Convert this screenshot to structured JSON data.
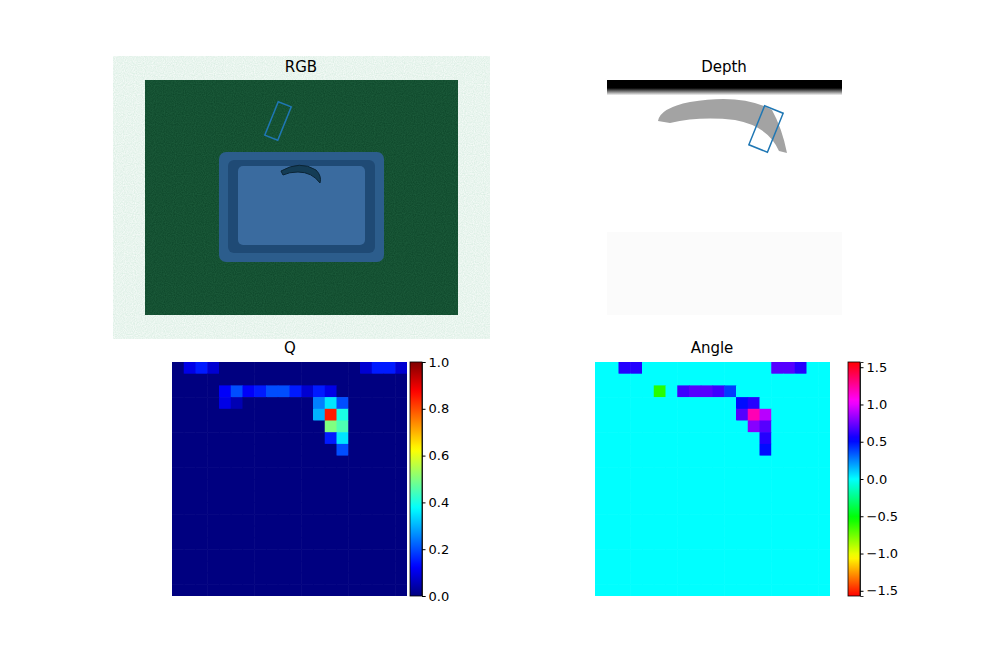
{
  "chart_data": [
    {
      "type": "image",
      "title": "RGB",
      "tick_labels": false
    },
    {
      "type": "image",
      "title": "Depth",
      "tick_labels": false
    },
    {
      "type": "heatmap",
      "title": "Q",
      "tick_labels": false,
      "cells": [
        [
          0,
          0.1,
          0.15,
          0.08,
          0,
          0,
          0,
          0,
          0,
          0,
          0,
          0,
          0,
          0,
          0,
          0,
          0.08,
          0.15,
          0.15,
          0.08
        ],
        [
          0,
          0,
          0,
          0,
          0,
          0,
          0,
          0,
          0,
          0,
          0,
          0,
          0,
          0,
          0,
          0,
          0,
          0,
          0,
          0
        ],
        [
          0,
          0,
          0,
          0,
          0.12,
          0.2,
          0.12,
          0.15,
          0.2,
          0.2,
          0.15,
          0.08,
          0.15,
          0.1,
          0,
          0,
          0,
          0,
          0,
          0
        ],
        [
          0,
          0,
          0,
          0,
          0.1,
          0.05,
          0,
          0,
          0,
          0,
          0,
          0,
          0.25,
          0.35,
          0.2,
          0,
          0,
          0,
          0,
          0
        ],
        [
          0,
          0,
          0,
          0,
          0,
          0,
          0,
          0,
          0,
          0,
          0,
          0,
          0.3,
          0.85,
          0.4,
          0,
          0,
          0,
          0,
          0
        ],
        [
          0,
          0,
          0,
          0,
          0,
          0,
          0,
          0,
          0,
          0,
          0,
          0,
          0,
          0.5,
          0.45,
          0,
          0,
          0,
          0,
          0
        ],
        [
          0,
          0,
          0,
          0,
          0,
          0,
          0,
          0,
          0,
          0,
          0,
          0,
          0,
          0.15,
          0.35,
          0,
          0,
          0,
          0,
          0
        ],
        [
          0,
          0,
          0,
          0,
          0,
          0,
          0,
          0,
          0,
          0,
          0,
          0,
          0,
          0,
          0.2,
          0,
          0,
          0,
          0,
          0
        ],
        [
          0,
          0,
          0,
          0,
          0,
          0,
          0,
          0,
          0,
          0,
          0,
          0,
          0,
          0,
          0,
          0,
          0,
          0,
          0,
          0
        ],
        [
          0,
          0,
          0,
          0,
          0,
          0,
          0,
          0,
          0,
          0,
          0,
          0,
          0,
          0,
          0,
          0,
          0,
          0,
          0,
          0
        ],
        [
          0,
          0,
          0,
          0,
          0,
          0,
          0,
          0,
          0,
          0,
          0,
          0,
          0,
          0,
          0,
          0,
          0,
          0,
          0,
          0
        ],
        [
          0,
          0,
          0,
          0,
          0,
          0,
          0,
          0,
          0,
          0,
          0,
          0,
          0,
          0,
          0,
          0,
          0,
          0,
          0,
          0
        ],
        [
          0,
          0,
          0,
          0,
          0,
          0,
          0,
          0,
          0,
          0,
          0,
          0,
          0,
          0,
          0,
          0,
          0,
          0,
          0,
          0
        ],
        [
          0,
          0,
          0,
          0,
          0,
          0,
          0,
          0,
          0,
          0,
          0,
          0,
          0,
          0,
          0,
          0,
          0,
          0,
          0,
          0
        ],
        [
          0,
          0,
          0,
          0,
          0,
          0,
          0,
          0,
          0,
          0,
          0,
          0,
          0,
          0,
          0,
          0,
          0,
          0,
          0,
          0
        ],
        [
          0,
          0,
          0,
          0,
          0,
          0,
          0,
          0,
          0,
          0,
          0,
          0,
          0,
          0,
          0,
          0,
          0,
          0,
          0,
          0
        ],
        [
          0,
          0,
          0,
          0,
          0,
          0,
          0,
          0,
          0,
          0,
          0,
          0,
          0,
          0,
          0,
          0,
          0,
          0,
          0,
          0
        ],
        [
          0,
          0,
          0,
          0,
          0,
          0,
          0,
          0,
          0,
          0,
          0,
          0,
          0,
          0,
          0,
          0,
          0,
          0,
          0,
          0
        ],
        [
          0,
          0,
          0,
          0,
          0,
          0,
          0,
          0,
          0,
          0,
          0,
          0,
          0,
          0,
          0,
          0,
          0,
          0,
          0,
          0
        ],
        [
          0,
          0,
          0,
          0,
          0,
          0,
          0,
          0,
          0,
          0,
          0,
          0,
          0,
          0,
          0,
          0,
          0,
          0,
          0,
          0
        ]
      ],
      "color_range": [
        0,
        1
      ],
      "color_ticks": [
        {
          "value": 0,
          "label": "0.0"
        },
        0.2,
        0.4,
        0.6,
        0.8,
        {
          "value": 1,
          "label": "1.0"
        }
      ]
    },
    {
      "type": "heatmap",
      "title": "Angle",
      "tick_labels": false,
      "cells": [
        [
          0,
          0,
          0.6,
          0.6,
          0,
          0,
          0,
          0,
          0,
          0,
          0,
          0,
          0,
          0,
          0,
          0.7,
          0.7,
          0.6,
          0,
          0
        ],
        [
          0,
          0,
          0,
          0,
          0,
          0,
          0,
          0,
          0,
          0,
          0,
          0,
          0,
          0,
          0,
          0,
          0,
          0,
          0,
          0
        ],
        [
          0,
          0,
          0,
          0,
          0,
          -0.6,
          0,
          0.65,
          0.7,
          0.7,
          0.65,
          0.4,
          0,
          0,
          0,
          0,
          0,
          0,
          0,
          0
        ],
        [
          0,
          0,
          0,
          0,
          0,
          0,
          0,
          0,
          0,
          0,
          0,
          0,
          0.5,
          0.6,
          0,
          0,
          0,
          0,
          0,
          0
        ],
        [
          0,
          0,
          0,
          0,
          0,
          0,
          0,
          0,
          0,
          0,
          0,
          0,
          0.7,
          1.2,
          0.9,
          0,
          0,
          0,
          0,
          0
        ],
        [
          0,
          0,
          0,
          0,
          0,
          0,
          0,
          0,
          0,
          0,
          0,
          0,
          0,
          0.8,
          0.7,
          0,
          0,
          0,
          0,
          0
        ],
        [
          0,
          0,
          0,
          0,
          0,
          0,
          0,
          0,
          0,
          0,
          0,
          0,
          0,
          0,
          0.6,
          0,
          0,
          0,
          0,
          0
        ],
        [
          0,
          0,
          0,
          0,
          0,
          0,
          0,
          0,
          0,
          0,
          0,
          0,
          0,
          0,
          0.5,
          0,
          0,
          0,
          0,
          0
        ],
        [
          0,
          0,
          0,
          0,
          0,
          0,
          0,
          0,
          0,
          0,
          0,
          0,
          0,
          0,
          0,
          0,
          0,
          0,
          0,
          0
        ],
        [
          0,
          0,
          0,
          0,
          0,
          0,
          0,
          0,
          0,
          0,
          0,
          0,
          0,
          0,
          0,
          0,
          0,
          0,
          0,
          0
        ],
        [
          0,
          0,
          0,
          0,
          0,
          0,
          0,
          0,
          0,
          0,
          0,
          0,
          0,
          0,
          0,
          0,
          0,
          0,
          0,
          0
        ],
        [
          0,
          0,
          0,
          0,
          0,
          0,
          0,
          0,
          0,
          0,
          0,
          0,
          0,
          0,
          0,
          0,
          0,
          0,
          0,
          0
        ],
        [
          0,
          0,
          0,
          0,
          0,
          0,
          0,
          0,
          0,
          0,
          0,
          0,
          0,
          0,
          0,
          0,
          0,
          0,
          0,
          0
        ],
        [
          0,
          0,
          0,
          0,
          0,
          0,
          0,
          0,
          0,
          0,
          0,
          0,
          0,
          0,
          0,
          0,
          0,
          0,
          0,
          0
        ],
        [
          0,
          0,
          0,
          0,
          0,
          0,
          0,
          0,
          0,
          0,
          0,
          0,
          0,
          0,
          0,
          0,
          0,
          0,
          0,
          0
        ],
        [
          0,
          0,
          0,
          0,
          0,
          0,
          0,
          0,
          0,
          0,
          0,
          0,
          0,
          0,
          0,
          0,
          0,
          0,
          0,
          0
        ],
        [
          0,
          0,
          0,
          0,
          0,
          0,
          0,
          0,
          0,
          0,
          0,
          0,
          0,
          0,
          0,
          0,
          0,
          0,
          0,
          0
        ],
        [
          0,
          0,
          0,
          0,
          0,
          0,
          0,
          0,
          0,
          0,
          0,
          0,
          0,
          0,
          0,
          0,
          0,
          0,
          0,
          0
        ],
        [
          0,
          0,
          0,
          0,
          0,
          0,
          0,
          0,
          0,
          0,
          0,
          0,
          0,
          0,
          0,
          0,
          0,
          0,
          0,
          0
        ],
        [
          0,
          0,
          0,
          0,
          0,
          0,
          0,
          0,
          0,
          0,
          0,
          0,
          0,
          0,
          0,
          0,
          0,
          0,
          0,
          0
        ]
      ],
      "color_range": [
        -1.57,
        1.57
      ],
      "color_ticks": [
        {
          "value": -1.5,
          "label": "−1.5"
        },
        {
          "value": -1,
          "label": "−1.0"
        },
        {
          "value": -0.5,
          "label": "−0.5"
        },
        {
          "value": 0,
          "label": "0.0"
        },
        0.5,
        {
          "value": 1,
          "label": "1.0"
        },
        1.5
      ]
    }
  ]
}
